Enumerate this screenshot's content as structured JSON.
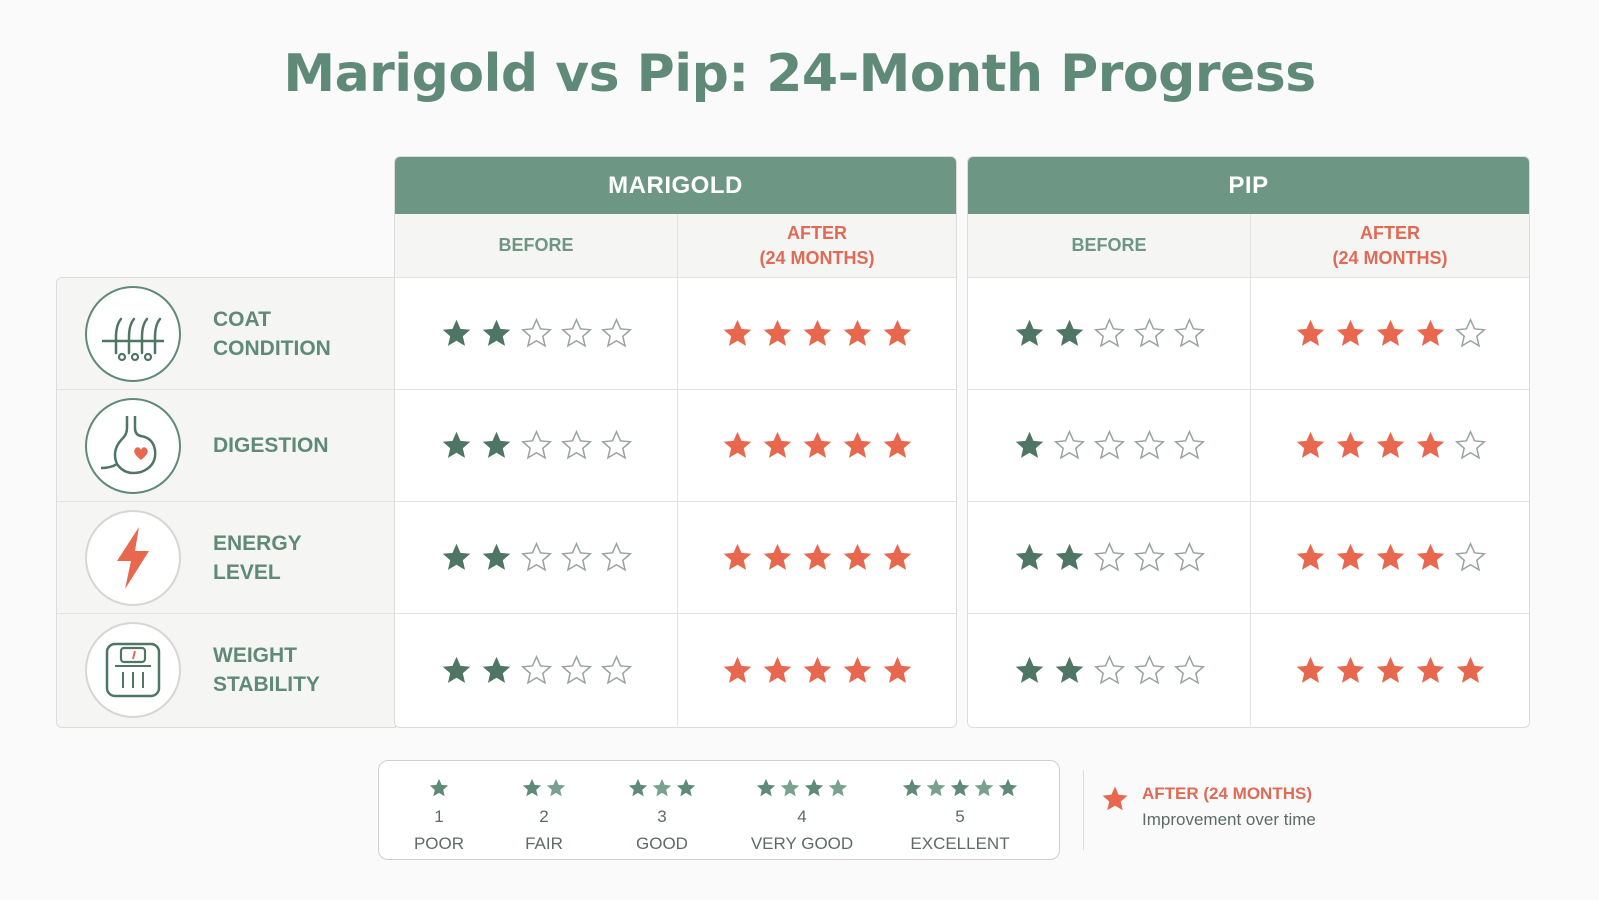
{
  "title": "Marigold vs Pip: 24-Month Progress",
  "colors": {
    "accent": "#6e9685",
    "before_star": "#4f7564",
    "after_star": "#e8684f",
    "empty_star": "#9aa39f"
  },
  "columns": {
    "before": "BEFORE",
    "after": "AFTER\n(24 MONTHS)"
  },
  "criteria": [
    {
      "label": "COAT\nCONDITION",
      "icon": "hair-follicle-icon"
    },
    {
      "label": "DIGESTION",
      "icon": "stomach-heart-icon"
    },
    {
      "label": "ENERGY\nLEVEL",
      "icon": "lightning-bolt-icon"
    },
    {
      "label": "WEIGHT\nSTABILITY",
      "icon": "scale-icon"
    }
  ],
  "pets": [
    {
      "name": "MARIGOLD",
      "before": [
        2,
        2,
        2,
        2
      ],
      "after": [
        5,
        5,
        5,
        5
      ]
    },
    {
      "name": "PIP",
      "before": [
        2,
        1,
        2,
        2
      ],
      "after": [
        4,
        4,
        4,
        5
      ]
    }
  ],
  "legend": {
    "items": [
      {
        "count": 1,
        "number": "1",
        "label": "POOR"
      },
      {
        "count": 2,
        "number": "2",
        "label": "FAIR"
      },
      {
        "count": 3,
        "number": "3",
        "label": "GOOD"
      },
      {
        "count": 4,
        "number": "4",
        "label": "VERY GOOD"
      },
      {
        "count": 5,
        "number": "5",
        "label": "EXCELLENT"
      }
    ],
    "after_title": "AFTER (24 MONTHS)",
    "after_desc": "Improvement over time"
  }
}
